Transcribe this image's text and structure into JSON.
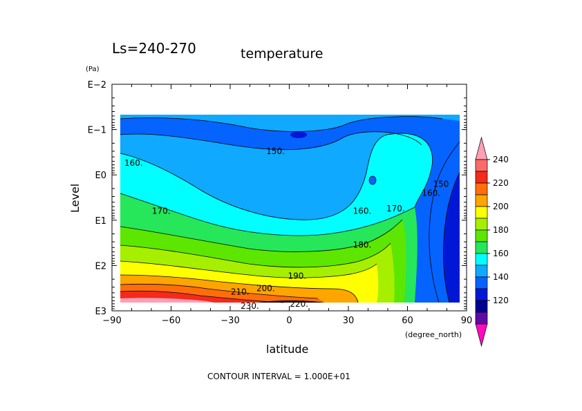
{
  "chart_data": {
    "type": "contour",
    "title_left": "Ls=240-270",
    "title_right": "temperature",
    "variable": "temperature",
    "xlabel": "latitude",
    "x_unit": "(degree_north)",
    "ylabel": "Level",
    "y_unit": "(Pa)",
    "x_range": [
      -90,
      90
    ],
    "x_ticks": [
      -90,
      -60,
      -30,
      0,
      30,
      60,
      90
    ],
    "x_tick_labels": [
      "−90",
      "−60",
      "−30",
      "0",
      "30",
      "60",
      "90"
    ],
    "y_scale": "log",
    "y_range_pa": [
      0.01,
      1000
    ],
    "y_ticks_pa": [
      0.01,
      0.1,
      1,
      10,
      100,
      1000
    ],
    "y_tick_labels": [
      "E−2",
      "E−1",
      "E0",
      "E1",
      "E2",
      "E3"
    ],
    "data_extent": {
      "lat": [
        -87,
        87
      ],
      "level_pa": [
        0.09,
        900
      ]
    },
    "contour_interval_text": "CONTOUR INTERVAL = 1.000E+01",
    "contour_interval": 10,
    "contour_labels": [
      {
        "text": "150.",
        "lat": -7,
        "level_pa": 0.3
      },
      {
        "text": "160.",
        "lat": -79,
        "level_pa": 0.55
      },
      {
        "text": "170.",
        "lat": -65,
        "level_pa": 6.3
      },
      {
        "text": "160.",
        "lat": 37,
        "level_pa": 6.3
      },
      {
        "text": "170.",
        "lat": 54,
        "level_pa": 5.5
      },
      {
        "text": "160.",
        "lat": 72,
        "level_pa": 2.5
      },
      {
        "text": "150",
        "lat": 77,
        "level_pa": 1.6
      },
      {
        "text": "180.",
        "lat": 37,
        "level_pa": 35
      },
      {
        "text": "190.",
        "lat": 4,
        "level_pa": 170
      },
      {
        "text": "200.",
        "lat": -12,
        "level_pa": 320
      },
      {
        "text": "210.",
        "lat": -25,
        "level_pa": 380
      },
      {
        "text": "220.",
        "lat": 5,
        "level_pa": 700
      },
      {
        "text": "230.",
        "lat": -20,
        "level_pa": 780
      }
    ],
    "colorbar": {
      "ticks": [
        "240",
        "220",
        "200",
        "180",
        "160",
        "140",
        "120"
      ],
      "levels": [
        {
          "value": 250,
          "color": "#ff9fb4"
        },
        {
          "value": 240,
          "color": "#fa6a6a"
        },
        {
          "value": 230,
          "color": "#f42a1a"
        },
        {
          "value": 220,
          "color": "#ff6e0a"
        },
        {
          "value": 210,
          "color": "#ffa500"
        },
        {
          "value": 200,
          "color": "#ffff00"
        },
        {
          "value": 190,
          "color": "#a6ef00"
        },
        {
          "value": 180,
          "color": "#5ce600"
        },
        {
          "value": 170,
          "color": "#26e65a"
        },
        {
          "value": 160,
          "color": "#00ffff"
        },
        {
          "value": 150,
          "color": "#0fa9ff"
        },
        {
          "value": 140,
          "color": "#0563ff"
        },
        {
          "value": 130,
          "color": "#0018d6"
        },
        {
          "value": 120,
          "color": "#000092"
        },
        {
          "value": 110,
          "color": "#5e0aa6"
        },
        {
          "value": 100,
          "color": "#ff0abf"
        }
      ]
    }
  }
}
